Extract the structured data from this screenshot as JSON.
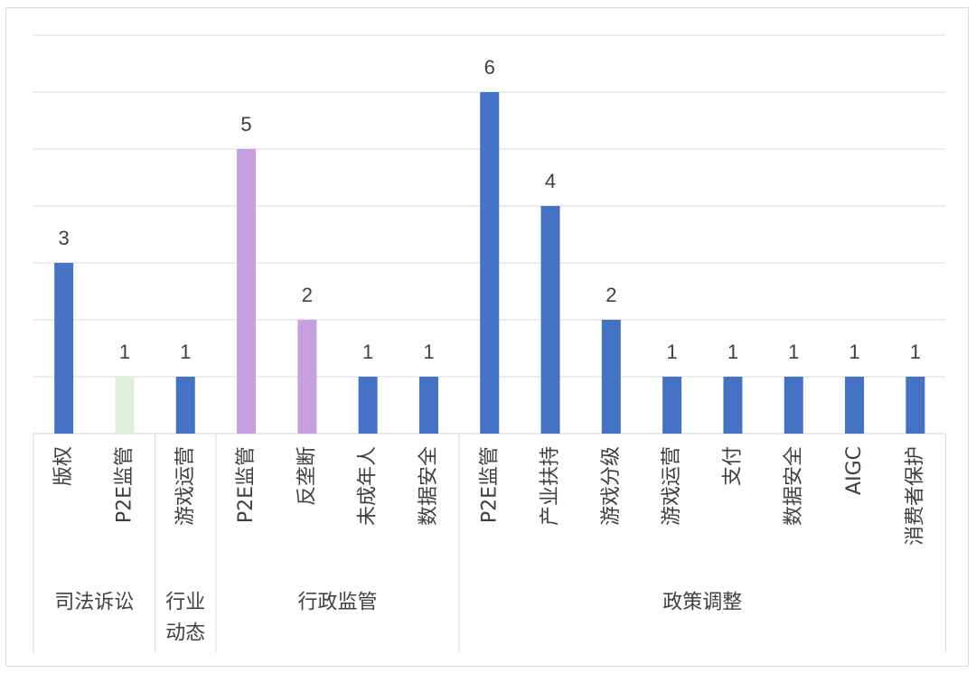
{
  "chart_data": {
    "type": "bar",
    "title": "",
    "xlabel": "",
    "ylabel": "",
    "ylim": [
      0,
      7
    ],
    "grid": true,
    "legend": "none",
    "groups": [
      {
        "label": "司法诉讼",
        "categories": [
          "版权",
          "P2E监管"
        ]
      },
      {
        "label": "行业动态",
        "categories": [
          "游戏运营"
        ]
      },
      {
        "label": "行政监管",
        "categories": [
          "P2E监管",
          "反垄断",
          "未成年人",
          "数据安全"
        ]
      },
      {
        "label": "政策调整",
        "categories": [
          "P2E监管",
          "产业扶持",
          "游戏分级",
          "游戏运营",
          "支付",
          "数据安全",
          "AIGC",
          "消费者保护"
        ]
      }
    ],
    "categories": [
      "版权",
      "P2E监管",
      "游戏运营",
      "P2E监管",
      "反垄断",
      "未成年人",
      "数据安全",
      "P2E监管",
      "产业扶持",
      "游戏分级",
      "游戏运营",
      "支付",
      "数据安全",
      "AIGC",
      "消费者保护"
    ],
    "values": [
      3,
      1,
      1,
      5,
      2,
      1,
      1,
      6,
      4,
      2,
      1,
      1,
      1,
      1,
      1
    ],
    "colors": [
      "#4472c4",
      "#e2efda",
      "#4472c4",
      "#c59fe0",
      "#c59fe0",
      "#4472c4",
      "#4472c4",
      "#4472c4",
      "#4472c4",
      "#4472c4",
      "#4472c4",
      "#4472c4",
      "#4472c4",
      "#4472c4",
      "#4472c4"
    ]
  },
  "colors": {
    "gridline": "#d9d9d9",
    "text": "#404040"
  }
}
